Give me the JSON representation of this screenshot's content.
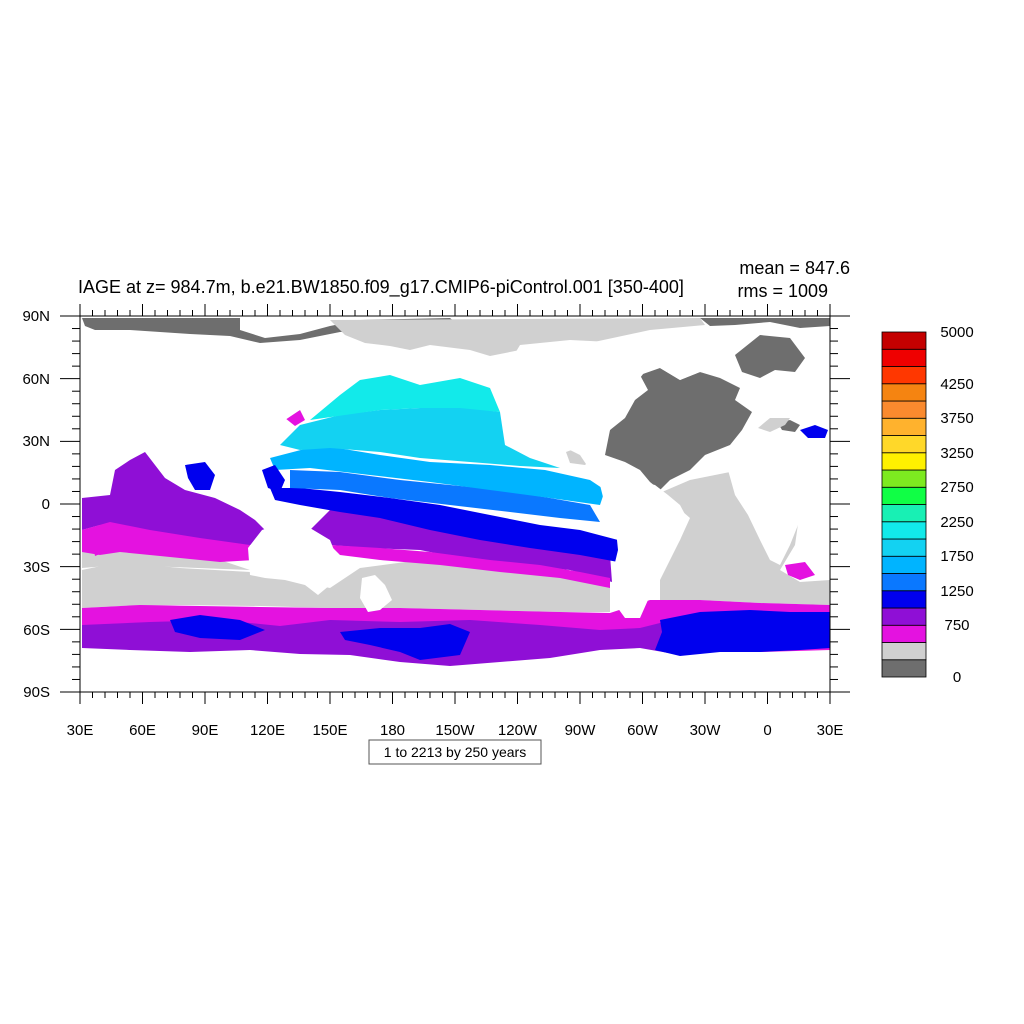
{
  "title": "IAGE at z= 984.7m, b.e21.BW1850.f09_g17.CMIP6-piControl.001 [350-400]",
  "stats": {
    "mean": "mean = 847.6",
    "rms": "rms = 1009"
  },
  "contour_info": "1 to 2213 by 250 years",
  "axes": {
    "x_ticks": [
      "30E",
      "60E",
      "90E",
      "120E",
      "150E",
      "180",
      "150W",
      "120W",
      "90W",
      "60W",
      "30W",
      "0",
      "30E"
    ],
    "y_ticks": [
      "90N",
      "60N",
      "30N",
      "0",
      "30S",
      "60S",
      "90S"
    ]
  },
  "colorbar": {
    "colors": [
      "#6e6e6e",
      "#d0d0d0",
      "#e412e0",
      "#8f0fd6",
      "#0000ee",
      "#0a78ff",
      "#00b4ff",
      "#13d2f2",
      "#12eaea",
      "#18f0b4",
      "#10ff45",
      "#7dea20",
      "#fff100",
      "#ffd829",
      "#ffb22d",
      "#fa8a2e",
      "#f58411",
      "#ff3700",
      "#ef0000",
      "#c40000"
    ],
    "labels": [
      "0",
      "750",
      "1250",
      "1750",
      "2250",
      "2750",
      "3250",
      "3750",
      "4250",
      "5000"
    ]
  },
  "chart_data": {
    "type": "heatmap",
    "variable": "IAGE",
    "depth": "984.7m",
    "case": "b.e21.BW1850.f09_g17.CMIP6-piControl.001",
    "years": "[350-400]",
    "mean": 847.6,
    "rms": 1009,
    "units": "years",
    "contour_min": 1,
    "contour_max": 2213,
    "contour_interval": 250,
    "x_range": [
      "30E",
      "30E"
    ],
    "y_range": [
      "90S",
      "90N"
    ]
  }
}
